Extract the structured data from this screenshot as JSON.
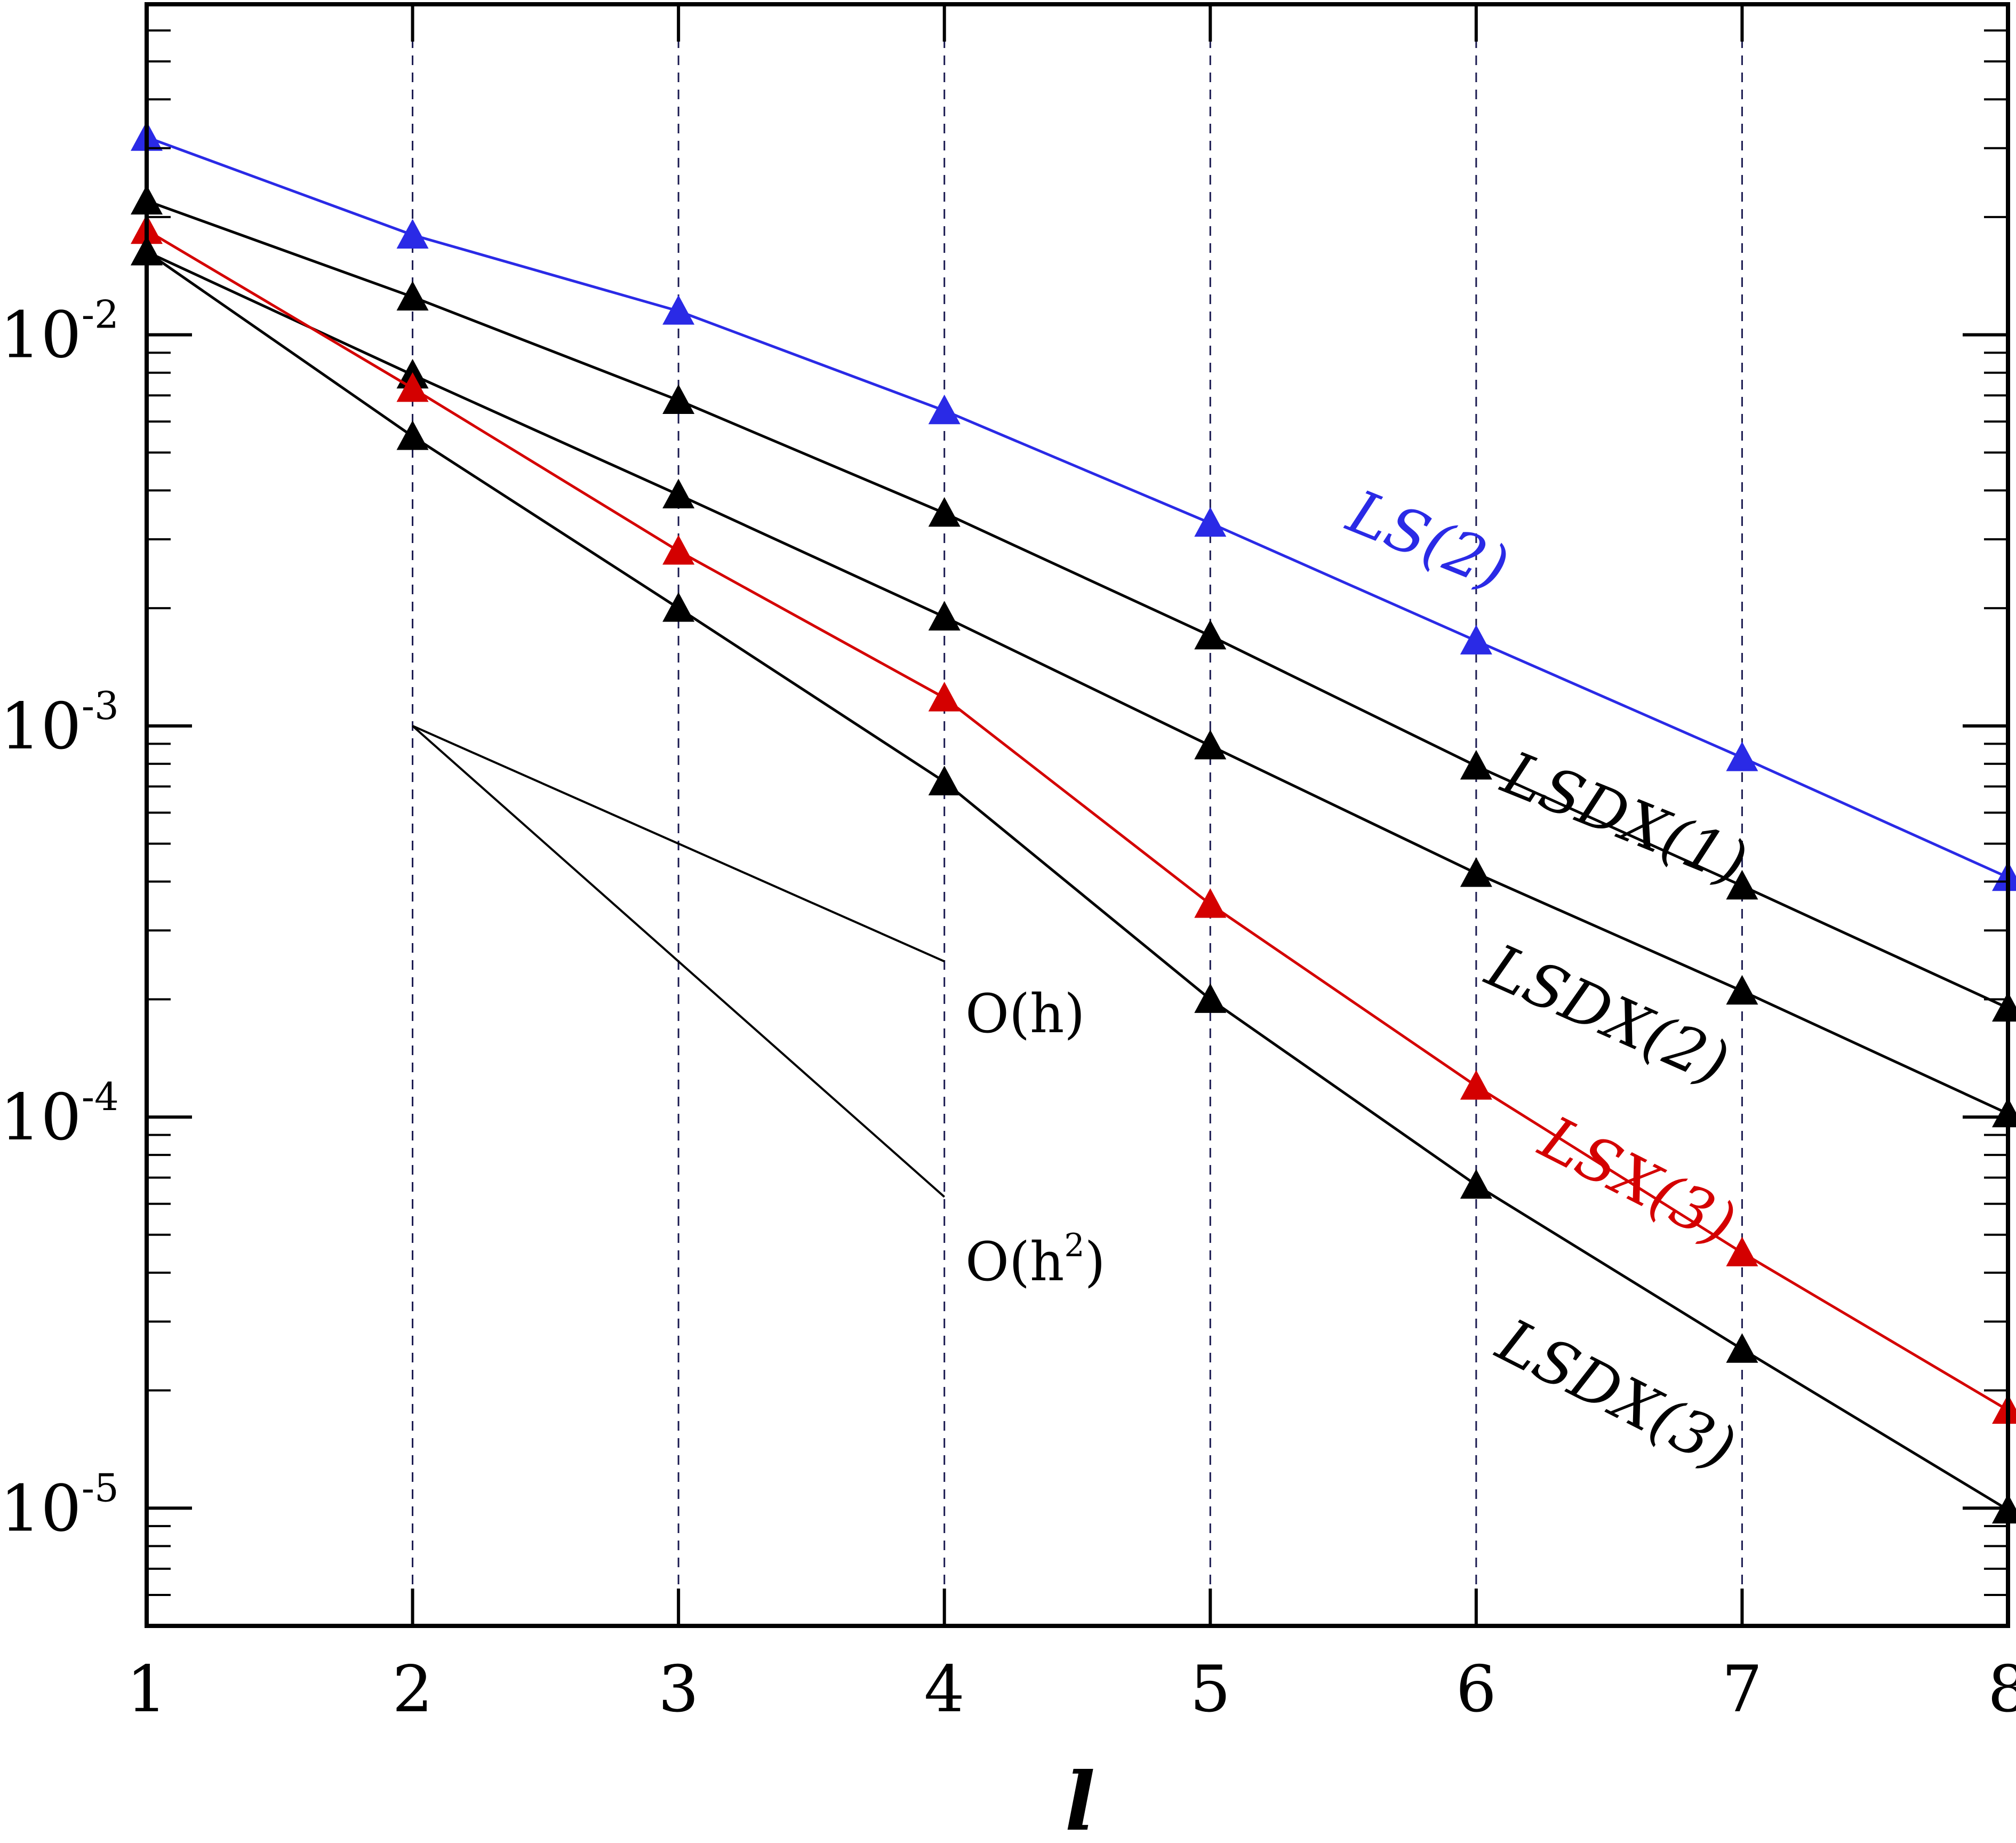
{
  "chart_data": {
    "type": "line",
    "title": "",
    "xlabel": "l",
    "ylabel": "",
    "x": [
      1,
      2,
      3,
      4,
      5,
      6,
      7,
      8
    ],
    "xlim": [
      1,
      8
    ],
    "ylim": [
      5e-06,
      0.07
    ],
    "yscale": "log",
    "xticks": [
      "1",
      "2",
      "3",
      "4",
      "5",
      "6",
      "7",
      "8"
    ],
    "yticks": [
      {
        "value": 0.01,
        "base": "10",
        "exp": "-2"
      },
      {
        "value": 0.001,
        "base": "10",
        "exp": "-3"
      },
      {
        "value": 0.0001,
        "base": "10",
        "exp": "-4"
      },
      {
        "value": 1e-05,
        "base": "10",
        "exp": "-5"
      }
    ],
    "grid": "vertical dashed at each x tick",
    "series": [
      {
        "name": "LS(2)",
        "color": "#2a2ae6",
        "marker": "triangle",
        "values": [
          0.032,
          0.018,
          0.0115,
          0.0064,
          0.0033,
          0.00165,
          0.00083,
          0.00041
        ]
      },
      {
        "name": "LSDX(1)",
        "color": "#000000",
        "marker": "triangle",
        "values": [
          0.022,
          0.0125,
          0.0068,
          0.0035,
          0.0017,
          0.00079,
          0.00039,
          0.00019
        ]
      },
      {
        "name": "LSDX(2)",
        "color": "#000000",
        "marker": "triangle",
        "values": [
          0.0163,
          0.0079,
          0.0039,
          0.0019,
          0.00089,
          0.00042,
          0.00021,
          0.000102
        ]
      },
      {
        "name": "LSX(3)",
        "color": "#d40000",
        "marker": "triangle",
        "values": [
          0.0185,
          0.0073,
          0.0028,
          0.00118,
          0.00035,
          0.00012,
          4.5e-05,
          1.78e-05
        ]
      },
      {
        "name": "LSDX(3)",
        "color": "#000000",
        "marker": "triangle",
        "values": [
          0.0163,
          0.0055,
          0.002,
          0.00072,
          0.0002,
          6.7e-05,
          2.55e-05,
          9.9e-06
        ]
      }
    ],
    "reference_lines": [
      {
        "name": "O(h)",
        "base": "O(h)",
        "sup": "",
        "x": [
          2,
          4
        ],
        "y": [
          0.001,
          0.00025
        ]
      },
      {
        "name": "O(h^2)",
        "base": "O(h",
        "sup": "2",
        "close": ")",
        "x": [
          2,
          4
        ],
        "y": [
          0.001,
          6.25e-05
        ]
      }
    ]
  }
}
